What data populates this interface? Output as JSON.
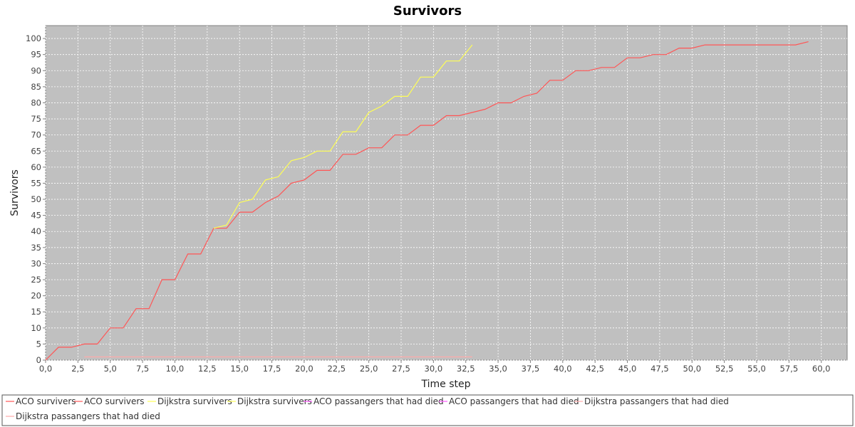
{
  "chart_data": {
    "type": "line",
    "title": "Survivors",
    "xlabel": "Time step",
    "ylabel": "Survivors",
    "xlim": [
      0,
      62
    ],
    "ylim": [
      0,
      104
    ],
    "x_ticks": [
      "0,0",
      "2,5",
      "5,0",
      "7,5",
      "10,0",
      "12,5",
      "15,0",
      "17,5",
      "20,0",
      "22,5",
      "25,0",
      "27,5",
      "30,0",
      "32,5",
      "35,0",
      "37,5",
      "40,0",
      "42,5",
      "45,0",
      "47,5",
      "50,0",
      "52,5",
      "55,0",
      "57,5",
      "60,0"
    ],
    "y_ticks": [
      "0",
      "5",
      "10",
      "15",
      "20",
      "25",
      "30",
      "35",
      "40",
      "45",
      "50",
      "55",
      "60",
      "65",
      "70",
      "75",
      "80",
      "85",
      "90",
      "95",
      "100"
    ],
    "grid": true,
    "background": "#c0c0c0",
    "legend_position": "bottom",
    "legend": [
      {
        "label": "ACO survivers",
        "color": "#ff5555"
      },
      {
        "label": "ACO survivers",
        "color": "#ff5555"
      },
      {
        "label": "Dijkstra survivers",
        "color": "#ffff55"
      },
      {
        "label": "Dijkstra survivers",
        "color": "#ffff55"
      },
      {
        "label": "ACO passangers that had died",
        "color": "#ff55ff"
      },
      {
        "label": "ACO passangers that had died",
        "color": "#ff55ff"
      },
      {
        "label": "Dijkstra passangers that had died",
        "color": "#ffaaaa"
      },
      {
        "label": "Dijkstra passangers that had died",
        "color": "#ffaaaa"
      }
    ],
    "series": [
      {
        "name": "ACO survivers",
        "color": "#ff5555",
        "x": [
          0,
          1,
          2,
          3,
          4,
          5,
          6,
          7,
          8,
          9,
          10,
          11,
          12,
          13,
          14,
          15,
          16,
          17,
          18,
          19,
          20,
          21,
          22,
          23,
          24,
          25,
          26,
          27,
          28,
          29,
          30,
          31,
          32,
          33,
          34,
          35,
          36,
          37,
          38,
          39,
          40,
          41,
          42,
          43,
          44,
          45,
          46,
          47,
          48,
          49,
          50,
          51,
          52,
          53,
          54,
          55,
          56,
          57,
          58,
          59
        ],
        "y": [
          0,
          4,
          4,
          5,
          5,
          10,
          10,
          16,
          16,
          25,
          25,
          33,
          33,
          41,
          41,
          46,
          46,
          49,
          51,
          55,
          56,
          59,
          59,
          64,
          64,
          66,
          66,
          70,
          70,
          73,
          73,
          76,
          76,
          77,
          78,
          80,
          80,
          82,
          83,
          87,
          87,
          90,
          90,
          91,
          91,
          94,
          94,
          95,
          95,
          97,
          97,
          98,
          98,
          98,
          98,
          98,
          98,
          98,
          98,
          99
        ]
      },
      {
        "name": "Dijkstra survivers",
        "color": "#ffff55",
        "x": [
          13,
          14,
          15,
          16,
          17,
          18,
          19,
          20,
          21,
          22,
          23,
          24,
          25,
          26,
          27,
          28,
          29,
          30,
          31,
          32,
          33
        ],
        "y": [
          41,
          42,
          49,
          50,
          56,
          57,
          62,
          63,
          65,
          65,
          71,
          71,
          77,
          79,
          82,
          82,
          88,
          88,
          93,
          93,
          98
        ]
      },
      {
        "name": "Dijkstra passangers that had died",
        "color": "#ffaaaa",
        "x": [
          3,
          33
        ],
        "y": [
          1,
          1
        ]
      }
    ]
  }
}
